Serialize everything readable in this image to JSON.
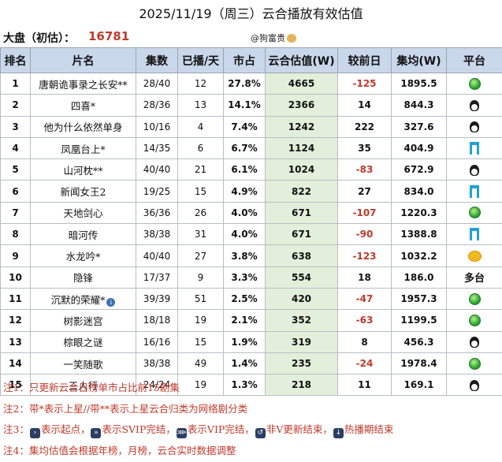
{
  "header": {
    "title": "2025/11/19（周三）云合播放有效估值",
    "dapan_label": "大盘（初估）：",
    "dapan_value": "16781",
    "watermark": "@狗富贵"
  },
  "table": {
    "columns": [
      "排名",
      "片名",
      "集数",
      "已播/天",
      "市占",
      "云合估值(W)",
      "较前日",
      "集均(W)",
      "平台"
    ],
    "rows": [
      {
        "rank": "1",
        "name": "唐朝诡事录之长安**",
        "episodes": "28/40",
        "days": "12",
        "share": "27.8%",
        "estimate": "4665",
        "change": "-125",
        "avg": "1895.5",
        "platform": "iqiyi-icon",
        "platform_text": "",
        "neg": true
      },
      {
        "rank": "2",
        "name": "四喜*",
        "episodes": "28/36",
        "days": "13",
        "share": "14.1%",
        "estimate": "2366",
        "change": "14",
        "avg": "844.3",
        "platform": "tencent-icon",
        "platform_text": "",
        "neg": false
      },
      {
        "rank": "3",
        "name": "他为什么依然单身",
        "episodes": "10/16",
        "days": "4",
        "share": "7.4%",
        "estimate": "1242",
        "change": "222",
        "avg": "327.6",
        "platform": "tencent-icon",
        "platform_text": "",
        "neg": false
      },
      {
        "rank": "4",
        "name": "凤凰台上*",
        "episodes": "14/35",
        "days": "6",
        "share": "6.7%",
        "estimate": "1124",
        "change": "35",
        "avg": "404.9",
        "platform": "youku-icon",
        "platform_text": "",
        "neg": false
      },
      {
        "rank": "5",
        "name": "山河枕**",
        "episodes": "40/40",
        "days": "21",
        "share": "6.1%",
        "estimate": "1024",
        "change": "-83",
        "avg": "672.9",
        "platform": "tencent-icon",
        "platform_text": "",
        "neg": true
      },
      {
        "rank": "6",
        "name": "新闻女王2",
        "episodes": "19/25",
        "days": "15",
        "share": "4.9%",
        "estimate": "822",
        "change": "27",
        "avg": "834.0",
        "platform": "youku-icon",
        "platform_text": "",
        "neg": false
      },
      {
        "rank": "7",
        "name": "天地剑心",
        "episodes": "36/36",
        "days": "26",
        "share": "4.0%",
        "estimate": "671",
        "change": "-107",
        "avg": "1220.3",
        "platform": "iqiyi-icon",
        "platform_text": "",
        "neg": true
      },
      {
        "rank": "8",
        "name": "暗河传",
        "episodes": "38/38",
        "days": "31",
        "share": "4.0%",
        "estimate": "671",
        "change": "-90",
        "avg": "1388.8",
        "platform": "youku-icon",
        "platform_text": "",
        "neg": true
      },
      {
        "rank": "9",
        "name": "水龙吟*",
        "episodes": "40/40",
        "days": "27",
        "share": "3.8%",
        "estimate": "638",
        "change": "-123",
        "avg": "1032.2",
        "platform": "mango-icon",
        "platform_text": "",
        "neg": true
      },
      {
        "rank": "10",
        "name": "隐锋",
        "episodes": "17/37",
        "days": "9",
        "share": "3.3%",
        "estimate": "554",
        "change": "18",
        "avg": "186.0",
        "platform": "multi",
        "platform_text": "多台",
        "neg": false
      },
      {
        "rank": "11",
        "name": "沉默的荣耀*",
        "episodes": "39/39",
        "days": "51",
        "share": "2.5%",
        "estimate": "420",
        "change": "-47",
        "avg": "1957.3",
        "platform": "iqiyi-icon",
        "platform_text": "",
        "neg": true,
        "hot": true
      },
      {
        "rank": "12",
        "name": "树影迷宫",
        "episodes": "18/18",
        "days": "19",
        "share": "2.1%",
        "estimate": "352",
        "change": "-63",
        "avg": "1199.5",
        "platform": "iqiyi-icon",
        "platform_text": "",
        "neg": true
      },
      {
        "rank": "13",
        "name": "棕眼之谜",
        "episodes": "16/16",
        "days": "15",
        "share": "1.9%",
        "estimate": "319",
        "change": "8",
        "avg": "456.3",
        "platform": "tencent-icon",
        "platform_text": "",
        "neg": false
      },
      {
        "rank": "14",
        "name": "一笑随歌",
        "episodes": "38/38",
        "days": "49",
        "share": "1.4%",
        "estimate": "235",
        "change": "-24",
        "avg": "1978.4",
        "platform": "iqiyi-icon",
        "platform_text": "",
        "neg": true
      },
      {
        "rank": "15",
        "name": "三人行",
        "episodes": "24/24",
        "days": "19",
        "share": "1.3%",
        "estimate": "218",
        "change": "11",
        "avg": "169.1",
        "platform": "tencent-icon",
        "platform_text": "",
        "neg": false
      }
    ]
  },
  "notes": {
    "n1": "注1：只更新云合日榜单市占比前15剧集",
    "n2": "注2：带*表示上星//带**表示上星云合归类为网络剧分类",
    "n3_prefix": "注3：",
    "n3_a": "表示起点，",
    "n3_b": "表示SVIP完结，",
    "n3_c": "表示VIP完结，",
    "n3_d": "非V更新结束，",
    "n3_e": "热播期结束",
    "n4": "注4：集均估值会根据年榜，月榜，云合实时数据调整"
  },
  "colors": {
    "header_bg": "#c9d7ea",
    "estimate_bg": "#e2efda",
    "negative": "#c0392b",
    "note_text": "#c0392b"
  }
}
